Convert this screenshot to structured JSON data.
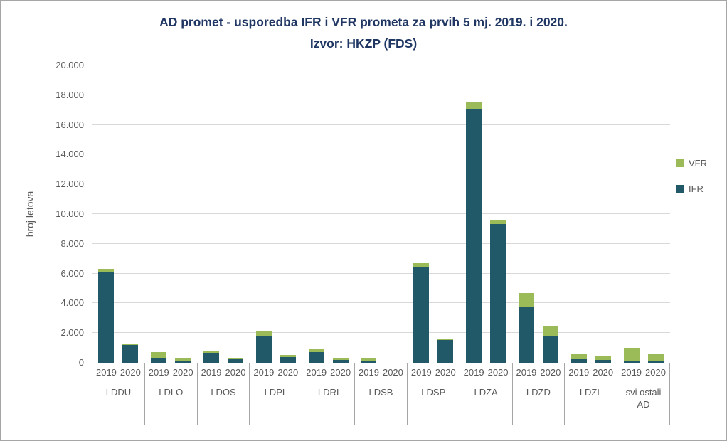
{
  "chart_data": {
    "type": "bar",
    "stacked": true,
    "title": "AD promet - usporedba IFR i VFR prometa za prvih 5 mj. 2019. i 2020.",
    "subtitle": "Izvor: HKZP (FDS)",
    "ylabel": "broj letova",
    "ylim": [
      0,
      20000
    ],
    "grid": true,
    "yticks": [
      {
        "value": 0,
        "label": "0"
      },
      {
        "value": 2000,
        "label": "2.000"
      },
      {
        "value": 4000,
        "label": "4.000"
      },
      {
        "value": 6000,
        "label": "6.000"
      },
      {
        "value": 8000,
        "label": "8.000"
      },
      {
        "value": 10000,
        "label": "10.000"
      },
      {
        "value": 12000,
        "label": "12.000"
      },
      {
        "value": 14000,
        "label": "14.000"
      },
      {
        "value": 16000,
        "label": "16.000"
      },
      {
        "value": 18000,
        "label": "18.000"
      },
      {
        "value": 20000,
        "label": "20.000"
      }
    ],
    "stack_order": [
      "IFR",
      "VFR"
    ],
    "series": [
      {
        "name": "VFR",
        "color": "#9bbb59"
      },
      {
        "name": "IFR",
        "color": "#215968"
      }
    ],
    "legend": {
      "position": "right",
      "entries": [
        "VFR",
        "IFR"
      ]
    },
    "groups": [
      {
        "label": "LDDU",
        "bars": [
          {
            "year": "2019",
            "values": {
              "IFR": 6100,
              "VFR": 200
            }
          },
          {
            "year": "2020",
            "values": {
              "IFR": 1200,
              "VFR": 50
            }
          }
        ]
      },
      {
        "label": "LDLO",
        "bars": [
          {
            "year": "2019",
            "values": {
              "IFR": 300,
              "VFR": 400
            }
          },
          {
            "year": "2020",
            "values": {
              "IFR": 150,
              "VFR": 150
            }
          }
        ]
      },
      {
        "label": "LDOS",
        "bars": [
          {
            "year": "2019",
            "values": {
              "IFR": 650,
              "VFR": 150
            }
          },
          {
            "year": "2020",
            "values": {
              "IFR": 250,
              "VFR": 100
            }
          }
        ]
      },
      {
        "label": "LDPL",
        "bars": [
          {
            "year": "2019",
            "values": {
              "IFR": 1800,
              "VFR": 300
            }
          },
          {
            "year": "2020",
            "values": {
              "IFR": 400,
              "VFR": 150
            }
          }
        ]
      },
      {
        "label": "LDRI",
        "bars": [
          {
            "year": "2019",
            "values": {
              "IFR": 700,
              "VFR": 200
            }
          },
          {
            "year": "2020",
            "values": {
              "IFR": 200,
              "VFR": 100
            }
          }
        ]
      },
      {
        "label": "LDSB",
        "bars": [
          {
            "year": "2019",
            "values": {
              "IFR": 150,
              "VFR": 150
            }
          },
          {
            "year": "2020",
            "values": {
              "IFR": 0,
              "VFR": 0
            }
          }
        ]
      },
      {
        "label": "LDSP",
        "bars": [
          {
            "year": "2019",
            "values": {
              "IFR": 6400,
              "VFR": 300
            }
          },
          {
            "year": "2020",
            "values": {
              "IFR": 1550,
              "VFR": 50
            }
          }
        ]
      },
      {
        "label": "LDZA",
        "bars": [
          {
            "year": "2019",
            "values": {
              "IFR": 17100,
              "VFR": 400
            }
          },
          {
            "year": "2020",
            "values": {
              "IFR": 9350,
              "VFR": 250
            }
          }
        ]
      },
      {
        "label": "LDZD",
        "bars": [
          {
            "year": "2019",
            "values": {
              "IFR": 3800,
              "VFR": 900
            }
          },
          {
            "year": "2020",
            "values": {
              "IFR": 1800,
              "VFR": 650
            }
          }
        ]
      },
      {
        "label": "LDZL",
        "bars": [
          {
            "year": "2019",
            "values": {
              "IFR": 250,
              "VFR": 350
            }
          },
          {
            "year": "2020",
            "values": {
              "IFR": 200,
              "VFR": 300
            }
          }
        ]
      },
      {
        "label": "svi ostali AD",
        "bars": [
          {
            "year": "2019",
            "values": {
              "IFR": 100,
              "VFR": 900
            }
          },
          {
            "year": "2020",
            "values": {
              "IFR": 100,
              "VFR": 500
            }
          }
        ]
      }
    ]
  }
}
